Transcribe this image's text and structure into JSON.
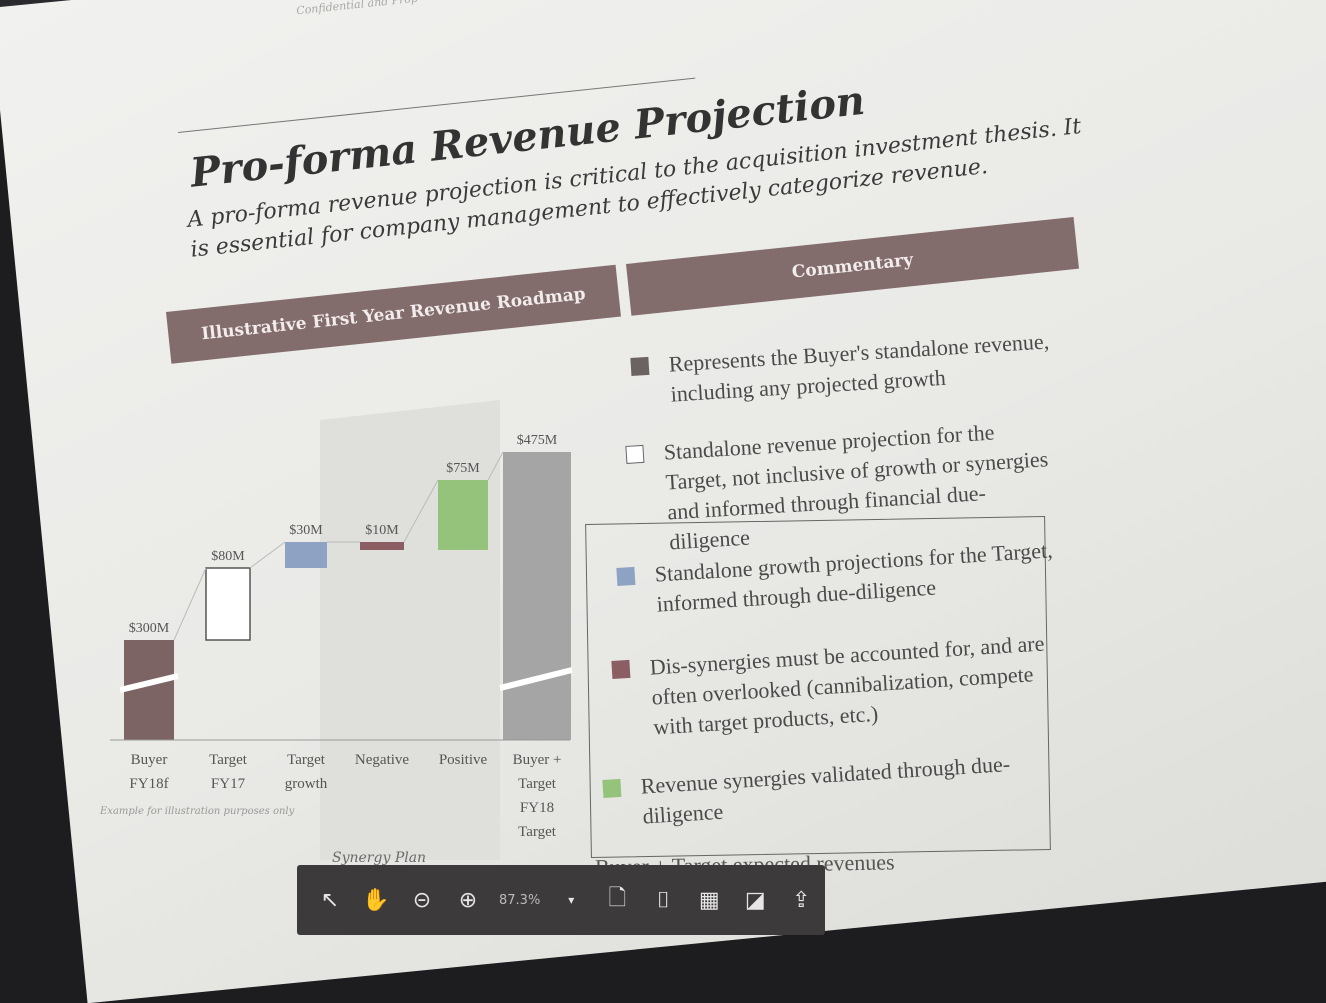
{
  "slide": {
    "confidential": "Confidential and Prop",
    "title": "Pro-forma Revenue Projection",
    "subtitle": "A pro-forma revenue projection is critical to the acquisition investment thesis. It is essential for company management to effectively categorize revenue.",
    "left_header": "Illustrative First Year Revenue Roadmap",
    "right_header": "Commentary",
    "footnote": "Example for illustration purposes only",
    "synergy_caption": "Synergy Plan",
    "bottom_line": "Buyer + Target expected revenues"
  },
  "chart_data": {
    "type": "bar",
    "categories": [
      "Buyer FY18f",
      "Target FY17",
      "Target growth",
      "Negative",
      "Positive",
      "Buyer + Target FY18 Target"
    ],
    "category_lines": [
      [
        "Buyer",
        "FY18f"
      ],
      [
        "Target",
        "FY17"
      ],
      [
        "Target",
        "growth"
      ],
      [
        "Negative"
      ],
      [
        "Positive"
      ],
      [
        "Buyer +",
        "Target",
        "FY18",
        "Target"
      ]
    ],
    "value_labels": [
      "$300M",
      "$80M",
      "$30M",
      "$10M",
      "$75M",
      "$475M"
    ],
    "values": [
      300,
      80,
      30,
      -10,
      75,
      475
    ],
    "colors": [
      "#7c6464",
      "#ffffff",
      "#8ea2c3",
      "#8b5e64",
      "#96c37c",
      "#a5a5a5"
    ]
  },
  "legend": [
    {
      "color": "#6b6363",
      "text": "Represents the Buyer's standalone revenue, including any projected growth"
    },
    {
      "color": "#ffffff",
      "text": "Standalone revenue projection for the Target, not inclusive of growth or synergies and informed through financial due-diligence"
    },
    {
      "color": "#8ea2c3",
      "text": "Standalone growth projections for the Target, informed through due-diligence"
    },
    {
      "color": "#8b5e64",
      "text": "Dis-synergies must be accounted for, and are often overlooked (cannibalization, compete with target products, etc.)"
    },
    {
      "color": "#96c37c",
      "text": "Revenue synergies validated through due-diligence"
    }
  ],
  "toolbar": {
    "zoom": "87.3%"
  }
}
